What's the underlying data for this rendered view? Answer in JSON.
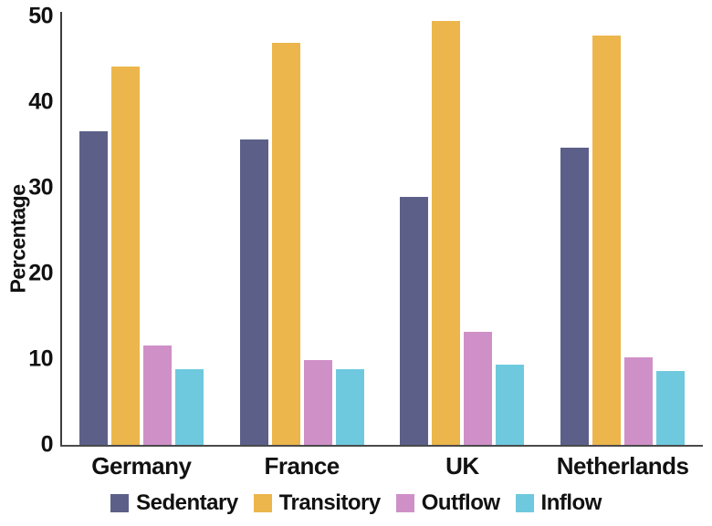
{
  "chart_data": {
    "type": "bar",
    "title": "",
    "xlabel": "",
    "ylabel": "Percentage",
    "ylim": [
      0,
      50
    ],
    "yticks": [
      "0",
      "10",
      "20",
      "30",
      "40",
      "50"
    ],
    "ytick_values": [
      0,
      10,
      20,
      30,
      40,
      50
    ],
    "grid": false,
    "legend_position": "bottom",
    "categories": [
      "Germany",
      "France",
      "UK",
      "Netherlands"
    ],
    "series": [
      {
        "name": "Sedentary",
        "color": "#5c6089",
        "values": [
          36.6,
          35.6,
          28.9,
          34.7
        ]
      },
      {
        "name": "Transitory",
        "color": "#ecb64c",
        "values": [
          44.2,
          46.9,
          49.5,
          47.8
        ]
      },
      {
        "name": "Outflow",
        "color": "#cf90c8",
        "values": [
          11.6,
          9.9,
          13.2,
          10.2
        ]
      },
      {
        "name": "Inflow",
        "color": "#6fc9de",
        "values": [
          8.8,
          8.8,
          9.4,
          8.6
        ]
      }
    ],
    "colors": {
      "axis_line": "#3d3d40",
      "baseline": "#4a4a4c",
      "text": "#111111",
      "background": "#ffffff"
    }
  }
}
